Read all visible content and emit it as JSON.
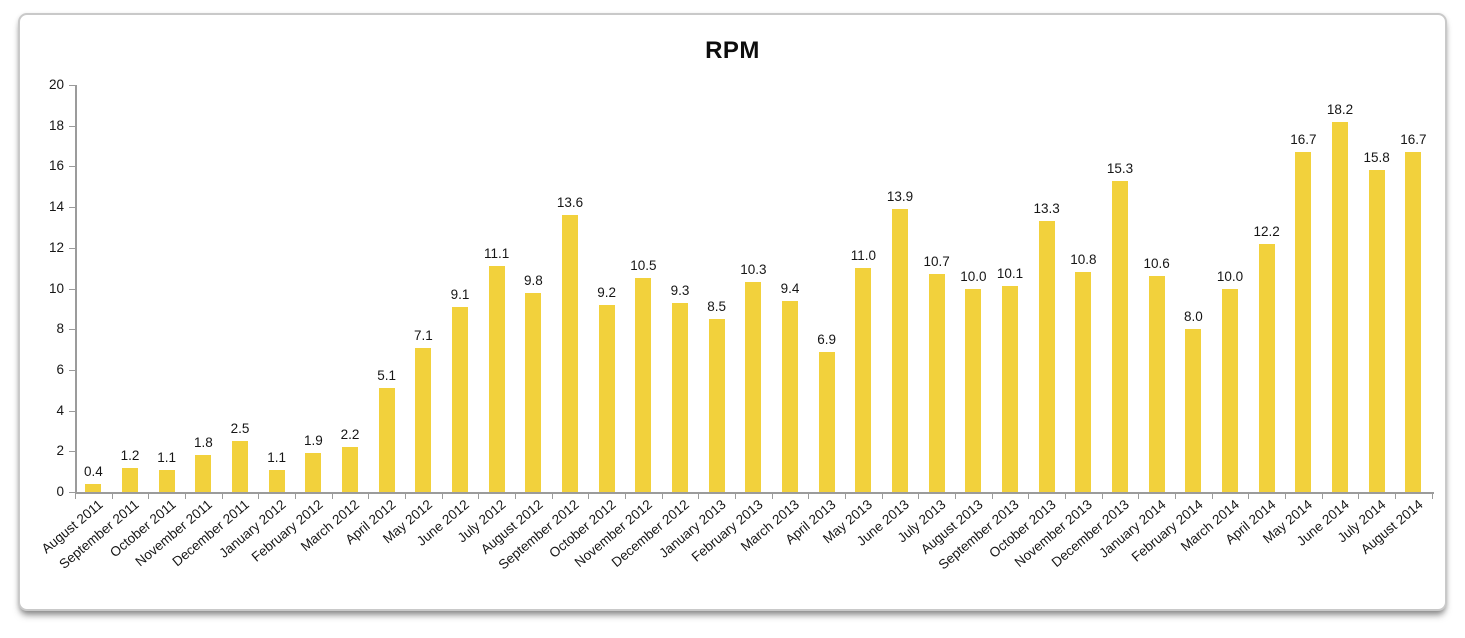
{
  "chart_data": {
    "type": "bar",
    "title": "RPM",
    "categories": [
      "August 2011",
      "September 2011",
      "October 2011",
      "November 2011",
      "December 2011",
      "January 2012",
      "February 2012",
      "March 2012",
      "April 2012",
      "May 2012",
      "June 2012",
      "July 2012",
      "August 2012",
      "September 2012",
      "October 2012",
      "November 2012",
      "December 2012",
      "January 2013",
      "February 2013",
      "March 2013",
      "April 2013",
      "May 2013",
      "June 2013",
      "July 2013",
      "August 2013",
      "September 2013",
      "October 2013",
      "November 2013",
      "December 2013",
      "January 2014",
      "February 2014",
      "March 2014",
      "April 2014",
      "May 2014",
      "June 2014",
      "July 2014",
      "August 2014"
    ],
    "values": [
      0.4,
      1.2,
      1.1,
      1.8,
      2.5,
      1.1,
      1.9,
      2.2,
      5.1,
      7.1,
      9.1,
      11.1,
      9.8,
      13.6,
      9.2,
      10.5,
      9.3,
      8.5,
      10.3,
      9.4,
      6.9,
      11.0,
      13.9,
      10.7,
      10.0,
      10.1,
      13.3,
      10.8,
      15.3,
      10.6,
      8.0,
      10.0,
      12.2,
      16.7,
      18.2,
      15.8,
      16.7
    ],
    "xlabel": "",
    "ylabel": "",
    "ylim": [
      0,
      20
    ],
    "ytick_step": 2,
    "grid": false,
    "legend": "none",
    "value_labels": true,
    "value_label_decimals": 1,
    "x_label_rotation_deg": -40,
    "bar_color": "#F2D13C",
    "axis_color": "#9B9B9B",
    "text_color": "#161616"
  }
}
